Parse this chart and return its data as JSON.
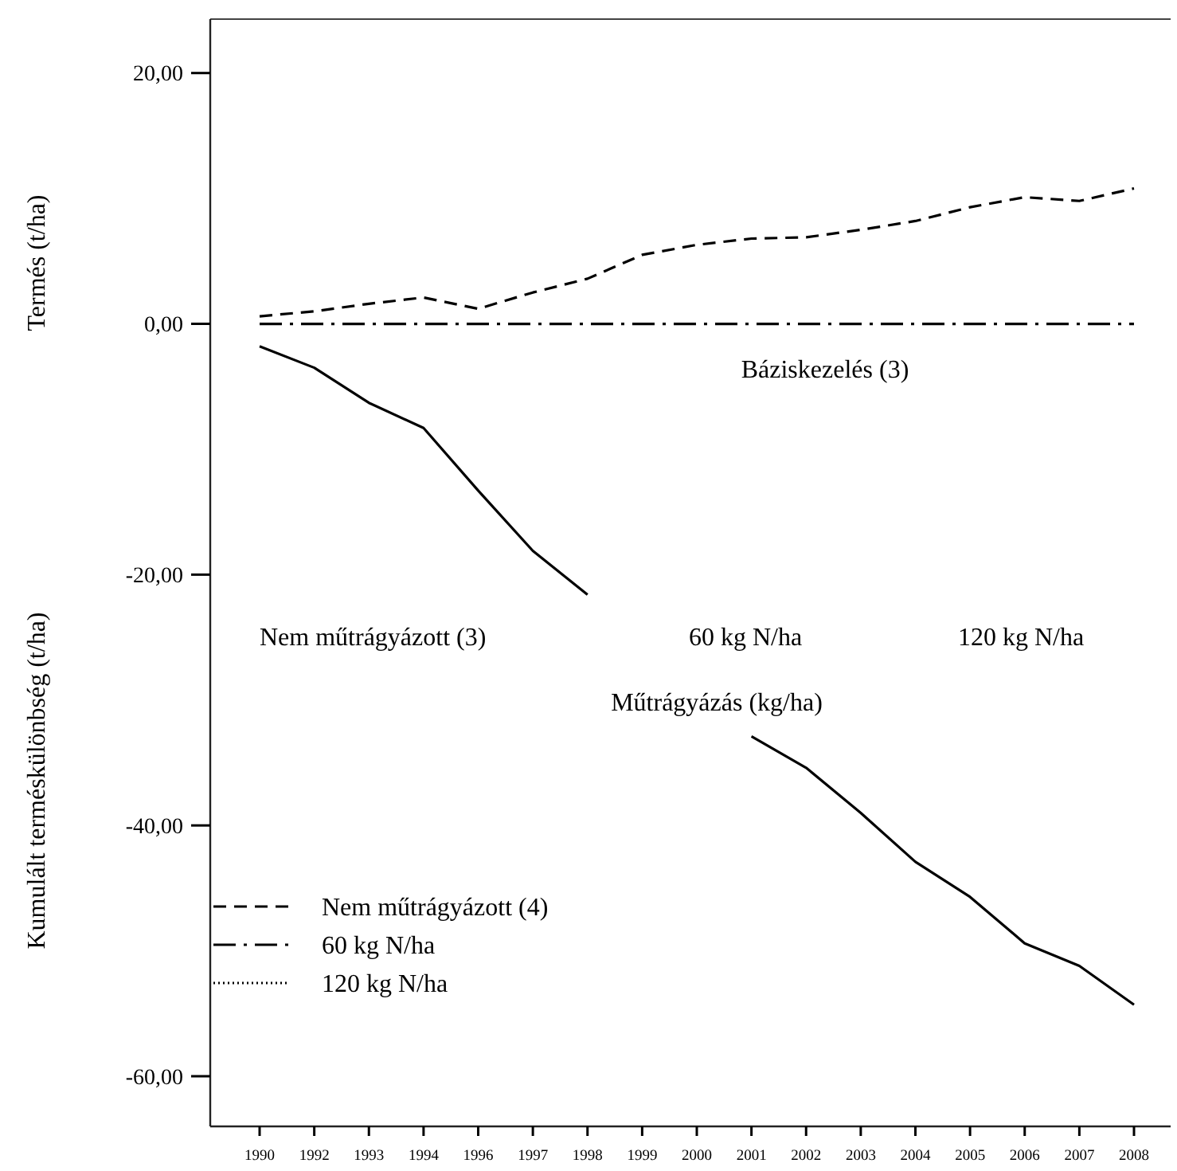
{
  "chart_data": {
    "type": "line",
    "ylabel": "Kumulált terméskülönbség (t/ha)",
    "categories": [
      "1990",
      "1992",
      "1993",
      "1994",
      "1996",
      "1997",
      "1998",
      "1999",
      "2000",
      "2001",
      "2002",
      "2003",
      "2004",
      "2005",
      "2006",
      "2007",
      "2008"
    ],
    "series": [
      {
        "color": "#000000",
        "line_style": "solid",
        "values": [
          -1.8,
          -3.5,
          -6.3,
          -8.3,
          -13.3,
          -18.1,
          -21.6,
          null,
          null,
          -32.9,
          -35.4,
          -39.0,
          -42.9,
          -45.7,
          -49.4,
          -51.2,
          -54.3
        ]
      },
      {
        "name": "Nem műtrágyázott (4)",
        "color": "#000000",
        "line_style": "dashed",
        "values": [
          0.6,
          1.0,
          1.6,
          2.1,
          1.2,
          2.5,
          3.6,
          5.5,
          6.3,
          6.8,
          6.9,
          7.5,
          8.2,
          9.3,
          10.1,
          9.8,
          10.8
        ]
      },
      {
        "name": "60 kg N/ha",
        "color": "#000000",
        "line_style": "dashdot",
        "values": [
          0,
          0,
          0,
          0,
          0,
          0,
          0,
          0,
          0,
          0,
          0,
          0,
          0,
          0,
          0,
          0,
          0
        ]
      },
      {
        "name": "120 kg N/ha",
        "color": "#000000",
        "line_style": "dotted",
        "values": [
          null,
          null,
          null,
          null,
          null,
          null,
          null,
          null,
          null,
          null,
          null,
          null,
          null,
          null,
          null,
          null,
          null
        ]
      }
    ],
    "ylim": [
      -64,
      24.3
    ],
    "yticks": [
      {
        "value": 20,
        "label": "20,00"
      },
      {
        "value": 0,
        "label": "0,00"
      },
      {
        "value": -20,
        "label": "-20,00"
      },
      {
        "value": -40,
        "label": "-40,00"
      },
      {
        "value": -60,
        "label": "-60,00"
      }
    ],
    "legend": "bottom left",
    "grid": false,
    "marker": "none",
    "annotations": [
      "Termés (t/ha)",
      "Báziskezelés (3)",
      "Nem műtrágyázott (3)",
      "60 kg N/ha",
      "120 kg N/ha",
      "Műtrágyázás (kg/ha)"
    ]
  }
}
